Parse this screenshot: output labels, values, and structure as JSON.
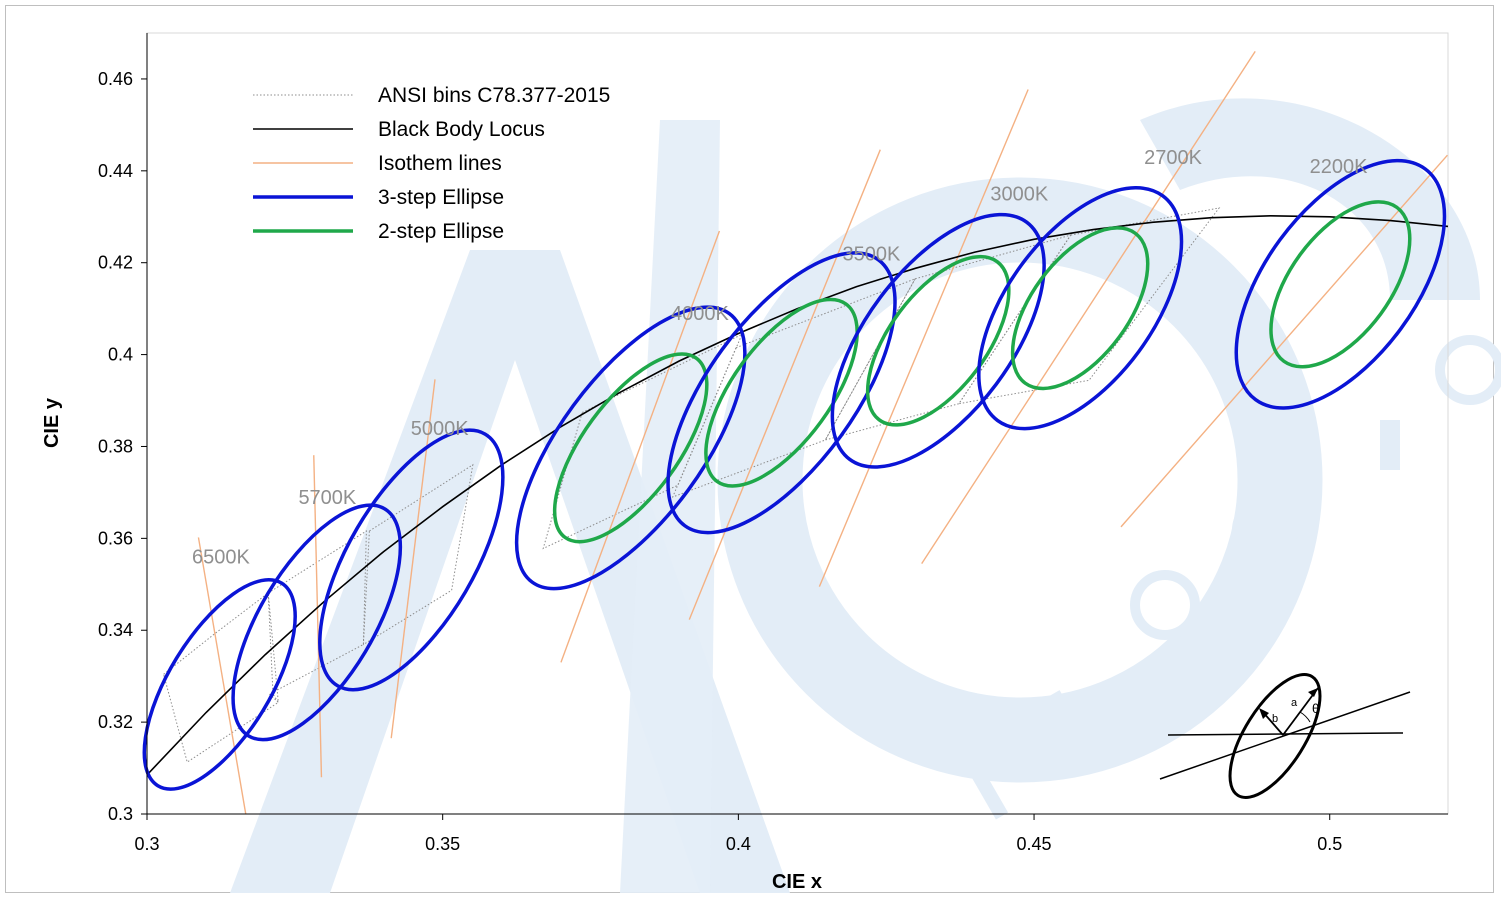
{
  "chart_data": {
    "type": "scatter",
    "xlabel": "CIE x",
    "ylabel": "CIE y",
    "xlim": [
      0.3,
      0.52
    ],
    "ylim": [
      0.3,
      0.47
    ],
    "x_ticks": [
      "0.3",
      "0.35",
      "0.4",
      "0.45",
      "0.5"
    ],
    "y_ticks": [
      "0.3",
      "0.32",
      "0.34",
      "0.36",
      "0.38",
      "0.4",
      "0.42",
      "0.44",
      "0.46"
    ],
    "grid": false,
    "legend_position": "top-left",
    "legend": [
      {
        "label": "ANSI bins C78.377-2015",
        "style": "dotted",
        "color": "#8c8c8c"
      },
      {
        "label": "Black Body Locus",
        "style": "solid",
        "color": "#000000"
      },
      {
        "label": "Isothem lines",
        "style": "solid",
        "color": "#f4b183"
      },
      {
        "label": "3-step Ellipse",
        "style": "ellipse",
        "color": "#0a14d6"
      },
      {
        "label": "2-step Ellipse",
        "style": "ellipse",
        "color": "#1fa84a"
      }
    ],
    "locus": [
      [
        0.3,
        0.3085
      ],
      [
        0.31,
        0.3221
      ],
      [
        0.32,
        0.3347
      ],
      [
        0.33,
        0.3463
      ],
      [
        0.34,
        0.3571
      ],
      [
        0.35,
        0.3669
      ],
      [
        0.36,
        0.376
      ],
      [
        0.37,
        0.3843
      ],
      [
        0.38,
        0.3918
      ],
      [
        0.39,
        0.3986
      ],
      [
        0.4,
        0.4046
      ],
      [
        0.41,
        0.41
      ],
      [
        0.42,
        0.4148
      ],
      [
        0.43,
        0.4188
      ],
      [
        0.44,
        0.4223
      ],
      [
        0.45,
        0.4251
      ],
      [
        0.46,
        0.4272
      ],
      [
        0.47,
        0.4288
      ],
      [
        0.48,
        0.4298
      ],
      [
        0.49,
        0.4302
      ],
      [
        0.5,
        0.43
      ],
      [
        0.51,
        0.4292
      ],
      [
        0.52,
        0.4279
      ]
    ],
    "cct_labels": [
      {
        "text": "6500K",
        "x": 0.3125,
        "y": 0.3545
      },
      {
        "text": "5700K",
        "x": 0.3305,
        "y": 0.3675
      },
      {
        "text": "5000K",
        "x": 0.3495,
        "y": 0.3825
      },
      {
        "text": "4000K",
        "x": 0.3935,
        "y": 0.4075
      },
      {
        "text": "3500K",
        "x": 0.4225,
        "y": 0.4205
      },
      {
        "text": "3000K",
        "x": 0.4475,
        "y": 0.4335
      },
      {
        "text": "2700K",
        "x": 0.4735,
        "y": 0.4415
      },
      {
        "text": "2200K",
        "x": 0.5015,
        "y": 0.4395
      }
    ],
    "ellipses": [
      {
        "cct": "6500K",
        "x": 0.3123,
        "y": 0.3282,
        "a": 0.00669,
        "b": 0.00285,
        "theta_deg": 58.57,
        "steps": [
          3
        ]
      },
      {
        "cct": "5700K",
        "x": 0.3287,
        "y": 0.3417,
        "a": 0.00746,
        "b": 0.0032,
        "theta_deg": 59.09,
        "steps": [
          3
        ]
      },
      {
        "cct": "5000K",
        "x": 0.3447,
        "y": 0.3553,
        "a": 0.00822,
        "b": 0.00354,
        "theta_deg": 59.62,
        "steps": [
          3
        ]
      },
      {
        "cct": "4000K",
        "x": 0.3818,
        "y": 0.3797,
        "a": 0.00939,
        "b": 0.00402,
        "theta_deg": 53.72,
        "steps": [
          3,
          2
        ]
      },
      {
        "cct": "3500K",
        "x": 0.4073,
        "y": 0.3917,
        "a": 0.00927,
        "b": 0.00414,
        "theta_deg": 54.0,
        "steps": [
          3,
          2
        ]
      },
      {
        "cct": "3000K",
        "x": 0.4338,
        "y": 0.403,
        "a": 0.00834,
        "b": 0.00408,
        "theta_deg": 53.22,
        "steps": [
          3,
          2
        ]
      },
      {
        "cct": "2700K",
        "x": 0.4578,
        "y": 0.4101,
        "a": 0.00786,
        "b": 0.00411,
        "theta_deg": 53.7,
        "steps": [
          3,
          2
        ]
      },
      {
        "cct": "2200K",
        "x": 0.5018,
        "y": 0.4153,
        "a": 0.00807,
        "b": 0.00423,
        "theta_deg": 53.72,
        "steps": [
          3,
          2
        ]
      }
    ],
    "isotherms": [
      {
        "cct": "6500K",
        "from": [
          0.3087,
          0.3602
        ],
        "to": [
          0.3167,
          0.3
        ]
      },
      {
        "cct": "5700K",
        "from": [
          0.3282,
          0.3781
        ],
        "to": [
          0.3295,
          0.308
        ]
      },
      {
        "cct": "5000K",
        "from": [
          0.3487,
          0.3946
        ],
        "to": [
          0.3413,
          0.3165
        ]
      },
      {
        "cct": "4000K",
        "from": [
          0.3968,
          0.4269
        ],
        "to": [
          0.37,
          0.333
        ]
      },
      {
        "cct": "3500K",
        "from": [
          0.424,
          0.4446
        ],
        "to": [
          0.3917,
          0.3423
        ]
      },
      {
        "cct": "3000K",
        "from": [
          0.449,
          0.4577
        ],
        "to": [
          0.4137,
          0.3495
        ]
      },
      {
        "cct": "2700K",
        "from": [
          0.4874,
          0.466
        ],
        "to": [
          0.431,
          0.3545
        ]
      },
      {
        "cct": "2200K",
        "from": [
          0.5199,
          0.4434
        ],
        "to": [
          0.4647,
          0.3625
        ]
      }
    ],
    "ansi_bins": [
      {
        "cct": "6500K",
        "points": [
          [
            0.3028,
            0.3304
          ],
          [
            0.3115,
            0.3393
          ],
          [
            0.3205,
            0.3481
          ],
          [
            0.3213,
            0.3261
          ],
          [
            0.3222,
            0.3243
          ],
          [
            0.3068,
            0.3113
          ]
        ]
      },
      {
        "cct": "5700K",
        "points": [
          [
            0.3205,
            0.3481
          ],
          [
            0.3371,
            0.3616
          ],
          [
            0.3366,
            0.3369
          ],
          [
            0.3207,
            0.3261
          ],
          [
            0.3222,
            0.3243
          ]
        ]
      },
      {
        "cct": "5000K",
        "points": [
          [
            0.3376,
            0.3616
          ],
          [
            0.3551,
            0.376
          ],
          [
            0.3515,
            0.3487
          ],
          [
            0.3366,
            0.3369
          ]
        ]
      },
      {
        "cct": "4000K",
        "points": [
          [
            0.3736,
            0.3874
          ],
          [
            0.4006,
            0.4044
          ],
          [
            0.3898,
            0.3716
          ],
          [
            0.367,
            0.3578
          ]
        ]
      },
      {
        "cct": "3500K",
        "points": [
          [
            0.3996,
            0.4015
          ],
          [
            0.4299,
            0.4165
          ],
          [
            0.4147,
            0.3814
          ],
          [
            0.3889,
            0.369
          ]
        ]
      },
      {
        "cct": "3000K",
        "points": [
          [
            0.4299,
            0.4165
          ],
          [
            0.4562,
            0.426
          ],
          [
            0.4373,
            0.3893
          ],
          [
            0.4147,
            0.3814
          ]
        ]
      },
      {
        "cct": "2700K",
        "points": [
          [
            0.4562,
            0.426
          ],
          [
            0.4813,
            0.4319
          ],
          [
            0.4593,
            0.3944
          ],
          [
            0.4373,
            0.3893
          ]
        ]
      }
    ]
  },
  "inset": {
    "labels": {
      "a": "a",
      "b": "b",
      "theta": "θ"
    }
  }
}
